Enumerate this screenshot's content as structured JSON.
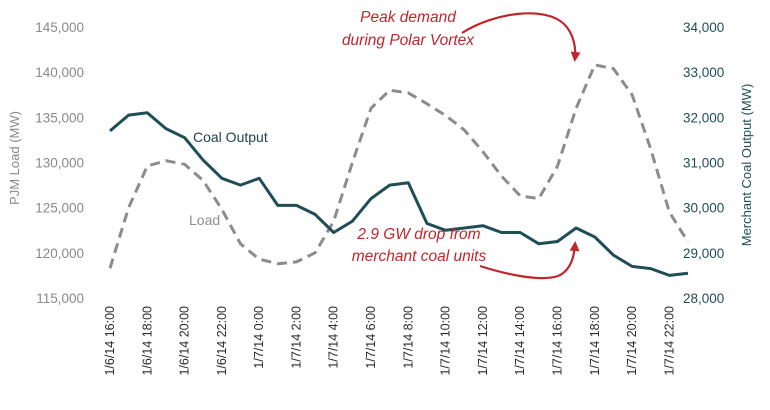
{
  "colors": {
    "coal": "#1f4e57",
    "load": "#8c8c8c",
    "annotation": "#c0262c"
  },
  "chart_data": {
    "type": "line",
    "x": [
      "1/6/14 16:00",
      "1/6/14 17:00",
      "1/6/14 18:00",
      "1/6/14 19:00",
      "1/6/14 20:00",
      "1/6/14 21:00",
      "1/6/14 22:00",
      "1/6/14 23:00",
      "1/7/14 0:00",
      "1/7/14 1:00",
      "1/7/14 2:00",
      "1/7/14 3:00",
      "1/7/14 4:00",
      "1/7/14 5:00",
      "1/7/14 6:00",
      "1/7/14 7:00",
      "1/7/14 8:00",
      "1/7/14 9:00",
      "1/7/14 10:00",
      "1/7/14 11:00",
      "1/7/14 12:00",
      "1/7/14 13:00",
      "1/7/14 14:00",
      "1/7/14 15:00",
      "1/7/14 16:00",
      "1/7/14 17:00",
      "1/7/14 18:00",
      "1/7/14 19:00",
      "1/7/14 20:00",
      "1/7/14 21:00",
      "1/7/14 22:00",
      "1/7/14 23:00"
    ],
    "x_tick_labels": [
      "1/6/14 16:00",
      "1/6/14 18:00",
      "1/6/14 20:00",
      "1/6/14 22:00",
      "1/7/14 0:00",
      "1/7/14 2:00",
      "1/7/14 4:00",
      "1/7/14 6:00",
      "1/7/14 8:00",
      "1/7/14 10:00",
      "1/7/14 12:00",
      "1/7/14 14:00",
      "1/7/14 16:00",
      "1/7/14 18:00",
      "1/7/14 20:00",
      "1/7/14 22:00"
    ],
    "series": [
      {
        "name": "Coal Output",
        "axis": "right",
        "style": "solid",
        "values": [
          31700,
          32050,
          32100,
          31750,
          31550,
          31050,
          30650,
          30500,
          30650,
          30050,
          30050,
          29850,
          29450,
          29700,
          30200,
          30500,
          30550,
          29650,
          29500,
          29550,
          29600,
          29450,
          29450,
          29200,
          29250,
          29550,
          29350,
          28950,
          28700,
          28650,
          28500,
          28550
        ]
      },
      {
        "name": "Load",
        "axis": "left",
        "style": "dashed",
        "values": [
          118300,
          125000,
          129600,
          130200,
          129800,
          128000,
          124800,
          121000,
          119300,
          118800,
          119000,
          120000,
          123500,
          130000,
          136000,
          138000,
          137700,
          136500,
          135200,
          133600,
          131200,
          128500,
          126300,
          126000,
          129600,
          136000,
          140800,
          140400,
          137500,
          131500,
          124500,
          121200
        ]
      }
    ],
    "y_left": {
      "label": "PJM Load (MW)",
      "ylim": [
        115000,
        145000
      ],
      "ticks": [
        115000,
        120000,
        125000,
        130000,
        135000,
        140000,
        145000
      ],
      "tick_labels": [
        "115,000",
        "120,000",
        "125,000",
        "130,000",
        "135,000",
        "140,000",
        "145,000"
      ]
    },
    "y_right": {
      "label": "Merchant Coal Output (MW)",
      "ylim": [
        28000,
        34000
      ],
      "ticks": [
        28000,
        29000,
        30000,
        31000,
        32000,
        33000,
        34000
      ],
      "tick_labels": [
        "28,000",
        "29,000",
        "30,000",
        "31,000",
        "32,000",
        "33,000",
        "34,000"
      ]
    },
    "grid": false,
    "series_labels": {
      "coal": "Coal Output",
      "load": "Load"
    },
    "annotations": [
      {
        "lines": [
          "Peak demand",
          "during Polar Vortex"
        ],
        "target_x": "1/7/14 18:00"
      },
      {
        "lines": [
          "2.9 GW drop from",
          "merchant coal units"
        ],
        "target_x": "1/7/14 18:00"
      }
    ]
  }
}
